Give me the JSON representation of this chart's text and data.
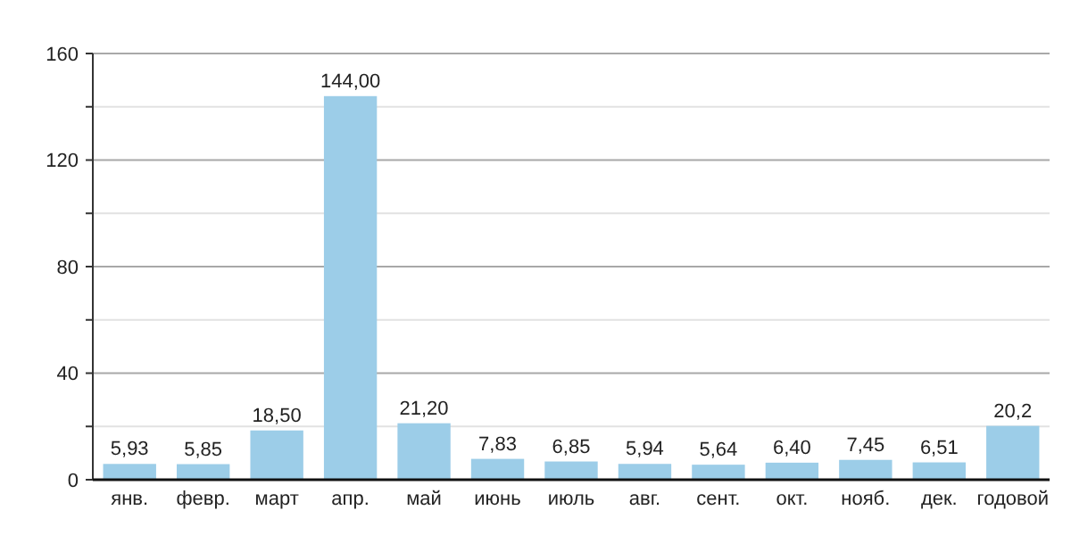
{
  "chart_data": {
    "type": "bar",
    "categories": [
      "янв.",
      "февр.",
      "март",
      "апр.",
      "май",
      "июнь",
      "июль",
      "авг.",
      "сент.",
      "окт.",
      "нояб.",
      "дек.",
      "годовой"
    ],
    "values": [
      5.93,
      5.85,
      18.5,
      144,
      21.2,
      7.83,
      6.85,
      5.94,
      5.64,
      6.4,
      7.45,
      6.51,
      20.2
    ],
    "value_labels": [
      "5,93",
      "5,85",
      "18,50",
      "144,00",
      "21,20",
      "7,83",
      "6,85",
      "5,94",
      "5,64",
      "6,40",
      "7,45",
      "6,51",
      "20,2"
    ],
    "color": "#9ccde8",
    "ylim": [
      0,
      160
    ],
    "yticks": [
      0,
      {
        "value": 20,
        "label": null
      },
      40,
      {
        "value": 60,
        "label": null
      },
      80,
      {
        "value": 100,
        "label": null
      },
      120,
      {
        "value": 140,
        "label": null
      },
      160
    ],
    "grid": "y"
  }
}
